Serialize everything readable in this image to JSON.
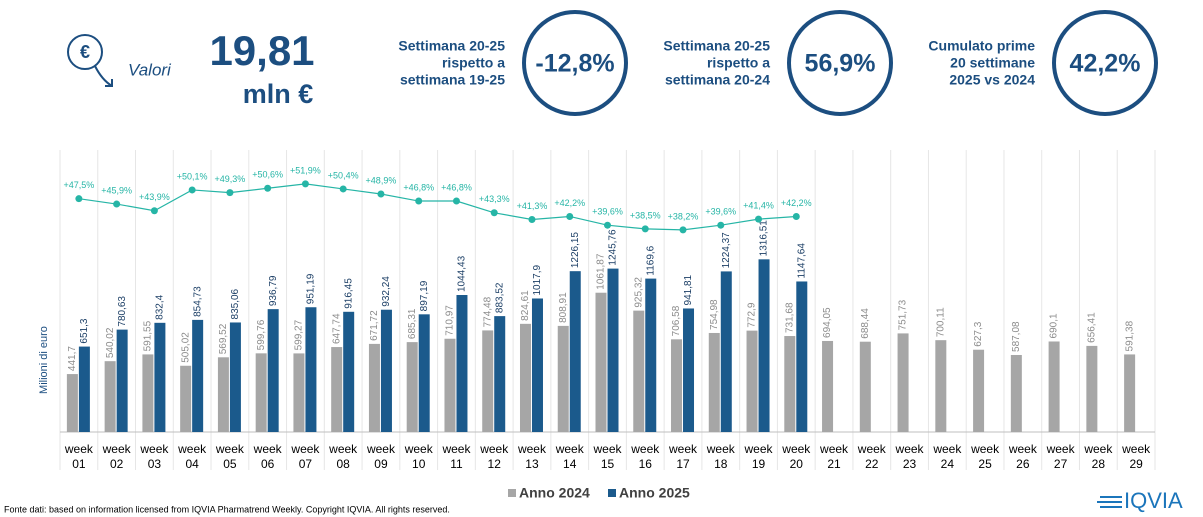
{
  "header": {
    "icon_label": "Valori",
    "total": "19,81",
    "unit": "mln €"
  },
  "kpis": [
    {
      "label": [
        "Settimana 20-25",
        "rispetto a",
        "settimana 19-25"
      ],
      "value": "-12,8%"
    },
    {
      "label": [
        "Settimana 20-25",
        "rispetto a",
        "settimana 20-24"
      ],
      "value": "56,9%"
    },
    {
      "label": [
        "Cumulato prime",
        "20 settimane",
        "2025 vs 2024"
      ],
      "value": "42,2%"
    }
  ],
  "chart_data": {
    "type": "bar",
    "y_label": "Milioni di euro",
    "categories": [
      "week 01",
      "week 02",
      "week 03",
      "week 04",
      "week 05",
      "week 06",
      "week 07",
      "week 08",
      "week 09",
      "week 10",
      "week 11",
      "week 12",
      "week 13",
      "week 14",
      "week 15",
      "week 16",
      "week 17",
      "week 18",
      "week 19",
      "week 20",
      "week 21",
      "week 22",
      "week 23",
      "week 24",
      "week 25",
      "week 26",
      "week 27",
      "week 28",
      "week 29"
    ],
    "series": [
      {
        "name": "Anno 2024",
        "color": "#a6a6a6",
        "values": [
          441.7,
          540.02,
          591.55,
          505.02,
          569.52,
          599.76,
          599.27,
          647.74,
          671.72,
          685.31,
          710.97,
          774.48,
          824.61,
          808.91,
          1061.87,
          925.32,
          706.58,
          754.98,
          772.9,
          731.68,
          694.05,
          688.44,
          751.73,
          700.11,
          627.3,
          587.08,
          690.1,
          656.41,
          591.38
        ],
        "value_labels": [
          "441,7",
          "540,02",
          "591,55",
          "505,02",
          "569,52",
          "599,76",
          "599,27",
          "647,74",
          "671,72",
          "685,31",
          "710,97",
          "774,48",
          "824,61",
          "808,91",
          "1061,87",
          "925,32",
          "706,58",
          "754,98",
          "772,9",
          "731,68",
          "694,05",
          "688,44",
          "751,73",
          "700,11",
          "627,3",
          "587,08",
          "690,1",
          "656,41",
          "591,38"
        ]
      },
      {
        "name": "Anno 2025",
        "color": "#1b5a8c",
        "values": [
          651.3,
          780.63,
          832.4,
          854.73,
          835.06,
          936.79,
          951.19,
          916.45,
          932.24,
          897.19,
          1044.43,
          883.52,
          1017.9,
          1226.15,
          1245.76,
          1169.6,
          941.81,
          1224.37,
          1316.51,
          1147.64,
          null,
          null,
          null,
          null,
          null,
          null,
          null,
          null,
          null
        ],
        "value_labels": [
          "651,3",
          "780,63",
          "832,4",
          "854,73",
          "835,06",
          "936,79",
          "951,19",
          "916,45",
          "932,24",
          "897,19",
          "1044,43",
          "883,52",
          "1017,9",
          "1226,15",
          "1245,76",
          "1169,6",
          "941,81",
          "1224,37",
          "1316,51",
          "1147,64",
          null,
          null,
          null,
          null,
          null,
          null,
          null,
          null,
          null
        ]
      }
    ],
    "growth": {
      "axis": "y2",
      "color": "#26b5a6",
      "values": [
        47.5,
        45.9,
        43.9,
        50.1,
        49.3,
        50.6,
        51.9,
        50.4,
        48.9,
        46.8,
        46.8,
        43.3,
        41.3,
        42.2,
        39.6,
        38.5,
        38.2,
        39.6,
        41.4,
        42.2,
        null,
        null,
        null,
        null,
        null,
        null,
        null,
        null,
        null
      ],
      "value_labels": [
        "+47,5%",
        "+45,9%",
        "+43,9%",
        "+50,1%",
        "+49,3%",
        "+50,6%",
        "+51,9%",
        "+50,4%",
        "+48,9%",
        "+46,8%",
        "+46,8%",
        "+43,3%",
        "+41,3%",
        "+42,2%",
        "+39,6%",
        "+38,5%",
        "+38,2%",
        "+39,6%",
        "+41,4%",
        "+42,2%",
        null,
        null,
        null,
        null,
        null,
        null,
        null,
        null,
        null
      ]
    },
    "ylim": [
      0,
      2150
    ],
    "y2lim": [
      -22,
      62
    ],
    "legend": "bottom"
  },
  "footnote": "Fonte dati: based on information licensed from IQVIA Pharmatrend Weekly. Copyright IQVIA. All rights reserved.",
  "logo": "IQVIA"
}
